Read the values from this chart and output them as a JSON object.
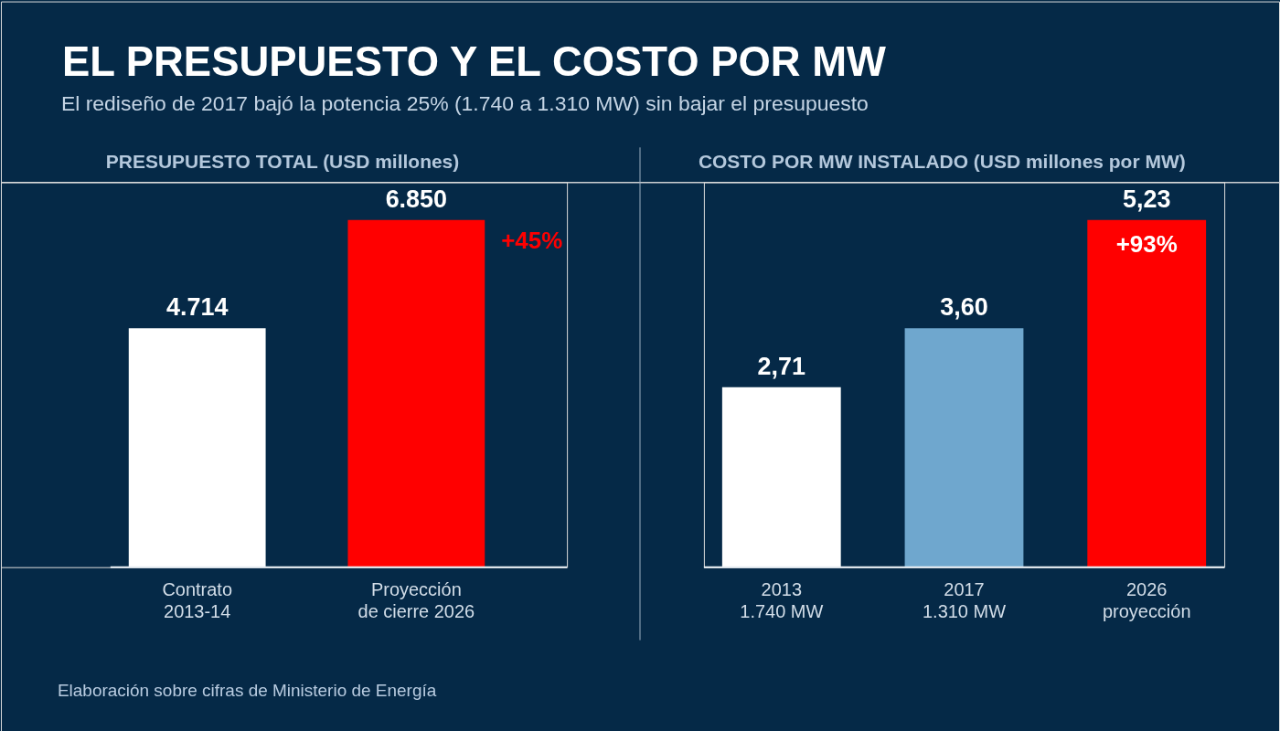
{
  "chart_data": [
    {
      "type": "other",
      "title": "EL PRESUPUESTO Y EL COSTO POR MW",
      "subtitle": "El rediseño de 2017 bajó la potencia 25% (1.740 a 1.310 MW) sin bajar el presupuesto",
      "annotations": [
        "Elaboración sobre cifras de Ministerio de Energía"
      ]
    },
    {
      "type": "bar",
      "title": "PRESUPUESTO TOTAL (USD millones)",
      "categories": [
        "Contrato\n2013-14",
        "Proyección\nde cierre 2026"
      ],
      "values": [
        4714,
        6850
      ],
      "colors": [
        "#ffffff",
        "#ff0000"
      ],
      "value_labels": [
        "4.714",
        "6.850"
      ],
      "ylim": [
        0,
        7600
      ],
      "tick_labels": "x",
      "annotations": [
        "+45%"
      ]
    },
    {
      "type": "bar",
      "title": "COSTO POR MW INSTALADO (USD millones por MW)",
      "categories": [
        "2013\n1.740 MW",
        "2017\n1.310 MW",
        "2026\nproyección"
      ],
      "values": [
        2.71,
        3.6,
        5.23
      ],
      "colors": [
        "#ffffff",
        "#6fa7ce",
        "#ff0000"
      ],
      "value_labels": [
        "2,71",
        "3,60",
        "5,23"
      ],
      "ylim": [
        0,
        5.8
      ],
      "tick_labels": "x",
      "annotations": [
        {
          "text": "+93%",
          "x": "2026\nproyección",
          "y": 5.23
        }
      ]
    }
  ]
}
